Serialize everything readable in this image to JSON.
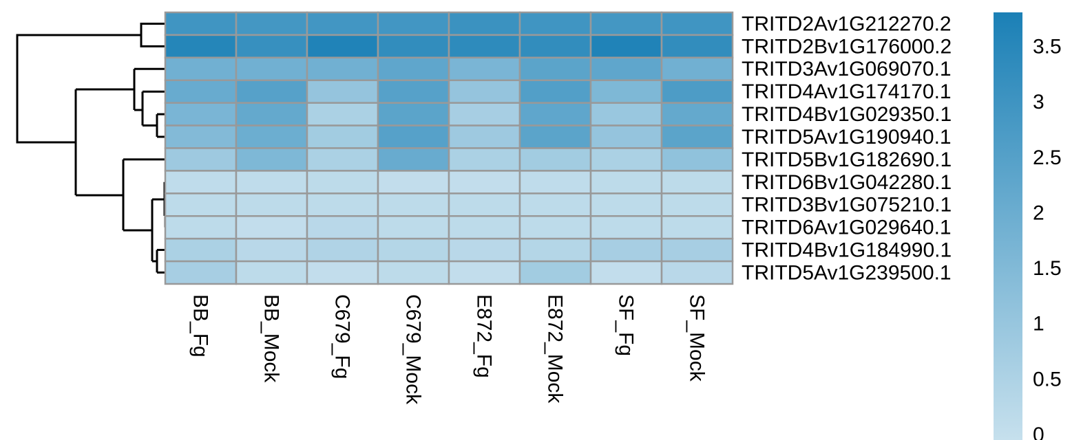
{
  "chart_data": {
    "type": "heatmap",
    "rows": [
      "TRITD2Av1G212270.2",
      "TRITD2Bv1G176000.2",
      "TRITD3Av1G069070.1",
      "TRITD4Av1G174170.1",
      "TRITD4Bv1G029350.1",
      "TRITD5Av1G190940.1",
      "TRITD5Bv1G182690.1",
      "TRITD6Bv1G042280.1",
      "TRITD3Bv1G075210.1",
      "TRITD6Av1G029640.1",
      "TRITD4Bv1G184990.1",
      "TRITD5Av1G239500.1"
    ],
    "columns": [
      "BB_Fg",
      "BB_Mock",
      "C679_Fg",
      "C679_Mock",
      "E872_Fg",
      "E872_Mock",
      "SF_Fg",
      "SF_Mock"
    ],
    "values": [
      [
        3.0,
        2.9,
        2.95,
        2.95,
        3.1,
        3.0,
        2.9,
        3.0
      ],
      [
        3.6,
        3.2,
        3.7,
        3.3,
        3.4,
        3.3,
        3.7,
        3.3
      ],
      [
        1.9,
        1.9,
        1.9,
        2.3,
        1.7,
        2.4,
        2.3,
        1.9
      ],
      [
        2.1,
        2.5,
        1.1,
        2.5,
        1.1,
        2.6,
        1.6,
        2.7
      ],
      [
        1.7,
        2.2,
        0.6,
        2.4,
        0.7,
        2.3,
        1.0,
        2.2
      ],
      [
        1.5,
        2.0,
        0.8,
        2.5,
        0.9,
        2.4,
        1.1,
        2.4
      ],
      [
        0.9,
        1.6,
        0.6,
        2.1,
        0.6,
        0.8,
        0.6,
        1.2
      ],
      [
        0.15,
        0.15,
        0.2,
        0.1,
        0.1,
        0.15,
        0.2,
        0.2
      ],
      [
        0.2,
        0.2,
        0.2,
        0.2,
        0.2,
        0.2,
        0.2,
        0.2
      ],
      [
        0.2,
        0.1,
        0.3,
        0.2,
        0.2,
        0.2,
        0.2,
        0.2
      ],
      [
        0.6,
        0.3,
        0.5,
        0.4,
        0.3,
        0.4,
        0.7,
        0.7
      ],
      [
        0.7,
        0.2,
        0.1,
        0.2,
        0.1,
        0.8,
        0.1,
        0.3
      ]
    ],
    "colors": [
      "#c6e0ed",
      "#1b80b6"
    ],
    "zlim": [
      0,
      3.82
    ],
    "zticks": [
      0,
      0.5,
      1,
      1.5,
      2,
      2.5,
      3,
      3.5
    ]
  }
}
